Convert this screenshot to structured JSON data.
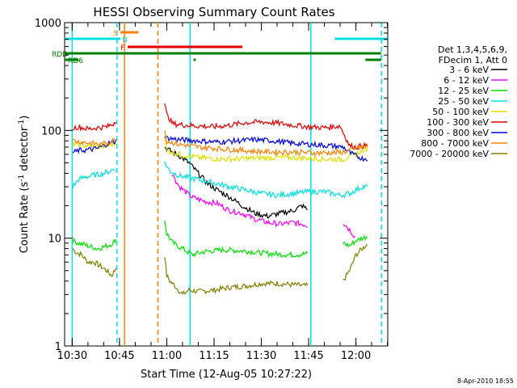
{
  "chart_data": {
    "type": "line",
    "title": "HESSI Observing Summary Count Rates",
    "xlabel": "Start Time (12-Aug-05 10:27:22)",
    "ylabel": "Count Rate (s⁻¹ detector⁻¹)",
    "ylabel_main": "Count Rate (s",
    "ylabel_sup1": "-1",
    "ylabel_mid": " detector",
    "ylabel_sup2": "-1",
    "ylabel_end": ")",
    "yscale": "log",
    "ylim": [
      1,
      1000
    ],
    "xlim_minutes": [
      -2.4,
      100.1
    ],
    "x_ticks": [
      {
        "label": "10:30",
        "minutes": 0
      },
      {
        "label": "10:45",
        "minutes": 15
      },
      {
        "label": "11:00",
        "minutes": 30
      },
      {
        "label": "11:15",
        "minutes": 45
      },
      {
        "label": "11:30",
        "minutes": 60
      },
      {
        "label": "11:45",
        "minutes": 75
      },
      {
        "label": "12:00",
        "minutes": 90
      }
    ],
    "y_ticks": [
      {
        "label": "1",
        "value": 1
      },
      {
        "label": "10",
        "value": 10
      },
      {
        "label": "100",
        "value": 100
      },
      {
        "label": "1000",
        "value": 1000
      }
    ],
    "legend": {
      "position": "right",
      "header": [
        "Det 1,3,4,5,6,9,",
        "FDecim 1, Att 0"
      ],
      "entries": [
        {
          "label": "3 - 6 keV",
          "color": "#000000"
        },
        {
          "label": "6 - 12 keV",
          "color": "#ff00ff"
        },
        {
          "label": "12 - 25 keV",
          "color": "#00e000"
        },
        {
          "label": "25 - 50 keV",
          "color": "#00e0e0"
        },
        {
          "label": "50 - 100 keV",
          "color": "#e0e000"
        },
        {
          "label": "100 - 300 keV",
          "color": "#e00000"
        },
        {
          "label": "300 - 800 keV",
          "color": "#0000e0"
        },
        {
          "label": "800 - 7000 keV",
          "color": "#ff8000"
        },
        {
          "label": "7000 - 20000 keV",
          "color": "#808000"
        }
      ]
    },
    "flags": [
      {
        "label": "S",
        "color": "#ff8000",
        "start": 15.3,
        "end": 21.0
      },
      {
        "label": "N",
        "color": "#00e0e0",
        "start": -2.4,
        "end": 15.3
      },
      {
        "label": "",
        "color": "#00e0e0",
        "start": 83.3,
        "end": 100.1
      },
      {
        "label": "F",
        "color": "#e00000",
        "start": 17.6,
        "end": 54.0
      },
      {
        "label": "RDB",
        "color": "#008000",
        "start": -2.4,
        "end": 98.0
      },
      {
        "label": "RD6",
        "color": "#008000",
        "start": -2.4,
        "end": 2.0
      },
      {
        "label": "",
        "color": "#008000",
        "start": 38.5,
        "end": 39.2
      },
      {
        "label": "",
        "color": "#008000",
        "start": 93.0,
        "end": 98.0
      }
    ],
    "vlines": [
      {
        "minutes": 0.0,
        "color": "#00e0e0",
        "dash": false
      },
      {
        "minutes": 16.6,
        "color": "#ff8000",
        "dash": false
      },
      {
        "minutes": 27.2,
        "color": "#ff8000",
        "dash": true
      },
      {
        "minutes": 37.4,
        "color": "#00e0e0",
        "dash": false
      },
      {
        "minutes": 75.7,
        "color": "#00e0e0",
        "dash": false
      },
      {
        "minutes": 98.1,
        "color": "#00e0e0",
        "dash": true
      },
      {
        "minutes": 14.2,
        "color": "#00e0e0",
        "dash": true
      }
    ],
    "series": [
      {
        "color": "#808000",
        "gaps": [
          [
            14.3,
            29.2
          ],
          [
            75.6,
            85.8
          ]
        ],
        "points": [
          [
            0.2,
            8
          ],
          [
            1,
            7.5
          ],
          [
            3,
            7
          ],
          [
            5,
            6
          ],
          [
            7,
            6
          ],
          [
            9,
            5.5
          ],
          [
            11,
            5
          ],
          [
            12.5,
            4.5
          ],
          [
            13.5,
            5
          ],
          [
            14.2,
            5.8
          ],
          [
            29.3,
            7
          ],
          [
            30,
            4.5
          ],
          [
            31,
            4
          ],
          [
            33,
            3.5
          ],
          [
            35,
            3
          ],
          [
            37,
            3.3
          ],
          [
            40,
            3.2
          ],
          [
            45,
            3.3
          ],
          [
            50,
            3.5
          ],
          [
            55,
            3.6
          ],
          [
            60,
            3.8
          ],
          [
            65,
            3.8
          ],
          [
            70,
            3.7
          ],
          [
            75,
            3.6
          ],
          [
            85.9,
            4
          ],
          [
            88,
            5
          ],
          [
            90,
            7
          ],
          [
            92,
            8
          ],
          [
            94,
            9
          ]
        ]
      },
      {
        "color": "#00e000",
        "gaps": [
          [
            14.3,
            29.2
          ],
          [
            75.6,
            85.8
          ]
        ],
        "points": [
          [
            0.2,
            9.5
          ],
          [
            2,
            9
          ],
          [
            5,
            8.5
          ],
          [
            8,
            8
          ],
          [
            11,
            8.5
          ],
          [
            13,
            9
          ],
          [
            14.2,
            10
          ],
          [
            29.3,
            15
          ],
          [
            30,
            11
          ],
          [
            32,
            9
          ],
          [
            35,
            8
          ],
          [
            38,
            7
          ],
          [
            42,
            7.5
          ],
          [
            48,
            7.8
          ],
          [
            55,
            7.6
          ],
          [
            62,
            7.2
          ],
          [
            70,
            7
          ],
          [
            75,
            7.2
          ],
          [
            85.9,
            9
          ],
          [
            88,
            8.5
          ],
          [
            90,
            9.5
          ],
          [
            92,
            10
          ],
          [
            94,
            10.5
          ]
        ]
      },
      {
        "color": "#ff00ff",
        "gaps": [
          [
            10.0,
            31.5
          ],
          [
            75.6,
            85.8
          ]
        ],
        "points": [
          [
            31.6,
            40
          ],
          [
            34,
            30
          ],
          [
            38,
            24
          ],
          [
            42,
            22
          ],
          [
            46,
            21
          ],
          [
            50,
            18
          ],
          [
            54,
            17
          ],
          [
            58,
            15
          ],
          [
            62,
            14
          ],
          [
            66,
            13.5
          ],
          [
            70,
            14
          ],
          [
            73,
            13.5
          ],
          [
            75,
            13
          ],
          [
            85.9,
            14
          ],
          [
            88,
            12
          ],
          [
            90,
            10
          ]
        ]
      },
      {
        "color": "#000000",
        "gaps": [
          [
            10.0,
            29.2
          ],
          [
            75.6,
            85.8
          ]
        ],
        "points": [
          [
            29.3,
            70
          ],
          [
            31,
            65
          ],
          [
            34,
            58
          ],
          [
            37,
            50
          ],
          [
            40,
            40
          ],
          [
            43,
            32
          ],
          [
            46,
            28
          ],
          [
            50,
            24
          ],
          [
            54,
            20
          ],
          [
            58,
            17
          ],
          [
            62,
            16
          ],
          [
            66,
            17
          ],
          [
            70,
            18
          ],
          [
            73,
            20
          ],
          [
            75,
            18
          ]
        ]
      },
      {
        "color": "#00e0e0",
        "gaps": [
          [
            14.3,
            29.2
          ]
        ],
        "points": [
          [
            0.2,
            30
          ],
          [
            2,
            35
          ],
          [
            4,
            37
          ],
          [
            6,
            38
          ],
          [
            8,
            39
          ],
          [
            10,
            40
          ],
          [
            12,
            42
          ],
          [
            14,
            45
          ],
          [
            29.3,
            50
          ],
          [
            31,
            42
          ],
          [
            34,
            38
          ],
          [
            38,
            36
          ],
          [
            42,
            34
          ],
          [
            46,
            32
          ],
          [
            50,
            30
          ],
          [
            55,
            28
          ],
          [
            60,
            26
          ],
          [
            65,
            25
          ],
          [
            70,
            26
          ],
          [
            75,
            27
          ],
          [
            80,
            27
          ],
          [
            85,
            25
          ],
          [
            88,
            26
          ],
          [
            90,
            28
          ],
          [
            92,
            30
          ],
          [
            94,
            30
          ]
        ]
      },
      {
        "color": "#e0e000",
        "gaps": [
          [
            14.3,
            29.2
          ]
        ],
        "points": [
          [
            0.2,
            75
          ],
          [
            2,
            74
          ],
          [
            5,
            72
          ],
          [
            8,
            70
          ],
          [
            11,
            72
          ],
          [
            13,
            75
          ],
          [
            14.2,
            80
          ],
          [
            29.3,
            90
          ],
          [
            30,
            65
          ],
          [
            34,
            60
          ],
          [
            40,
            56
          ],
          [
            48,
            54
          ],
          [
            56,
            55
          ],
          [
            64,
            56
          ],
          [
            70,
            56
          ],
          [
            76,
            55
          ],
          [
            82,
            54
          ],
          [
            86,
            54
          ],
          [
            88,
            58
          ],
          [
            90,
            60
          ],
          [
            92,
            65
          ],
          [
            94,
            68
          ]
        ]
      },
      {
        "color": "#e00000",
        "gaps": [
          [
            14.3,
            29.2
          ]
        ],
        "points": [
          [
            0.2,
            105
          ],
          [
            2,
            108
          ],
          [
            5,
            103
          ],
          [
            8,
            106
          ],
          [
            11,
            108
          ],
          [
            13,
            115
          ],
          [
            14.2,
            130
          ],
          [
            29.3,
            180
          ],
          [
            30,
            140
          ],
          [
            32,
            115
          ],
          [
            36,
            112
          ],
          [
            40,
            110
          ],
          [
            45,
            108
          ],
          [
            50,
            112
          ],
          [
            55,
            118
          ],
          [
            60,
            120
          ],
          [
            65,
            117
          ],
          [
            70,
            112
          ],
          [
            75,
            108
          ],
          [
            80,
            106
          ],
          [
            85,
            110
          ],
          [
            86,
            95
          ],
          [
            88,
            72
          ],
          [
            90,
            70
          ],
          [
            92,
            72
          ],
          [
            94,
            72
          ]
        ]
      },
      {
        "color": "#0000e0",
        "gaps": [
          [
            14.3,
            29.2
          ]
        ],
        "points": [
          [
            0.2,
            62
          ],
          [
            2,
            65
          ],
          [
            5,
            66
          ],
          [
            8,
            68
          ],
          [
            11,
            75
          ],
          [
            13,
            78
          ],
          [
            14.2,
            80
          ],
          [
            29.3,
            90
          ],
          [
            30,
            85
          ],
          [
            34,
            82
          ],
          [
            40,
            80
          ],
          [
            46,
            78
          ],
          [
            52,
            80
          ],
          [
            58,
            82
          ],
          [
            64,
            80
          ],
          [
            70,
            76
          ],
          [
            76,
            74
          ],
          [
            82,
            72
          ],
          [
            86,
            70
          ],
          [
            88,
            62
          ],
          [
            90,
            58
          ],
          [
            92,
            55
          ],
          [
            94,
            55
          ]
        ]
      },
      {
        "color": "#ff8000",
        "gaps": [
          [
            14.3,
            29.2
          ]
        ],
        "points": [
          [
            0.2,
            80
          ],
          [
            3,
            78
          ],
          [
            6,
            76
          ],
          [
            9,
            74
          ],
          [
            12,
            78
          ],
          [
            14.2,
            85
          ],
          [
            29.3,
            100
          ],
          [
            30,
            80
          ],
          [
            34,
            74
          ],
          [
            40,
            70
          ],
          [
            46,
            68
          ],
          [
            52,
            66
          ],
          [
            58,
            64
          ],
          [
            64,
            63
          ],
          [
            70,
            63
          ],
          [
            76,
            62
          ],
          [
            82,
            62
          ],
          [
            86,
            63
          ],
          [
            88,
            65
          ],
          [
            90,
            68
          ],
          [
            92,
            70
          ],
          [
            94,
            72
          ]
        ]
      }
    ]
  },
  "footer": {
    "date": "8-Apr-2010 18:55"
  }
}
